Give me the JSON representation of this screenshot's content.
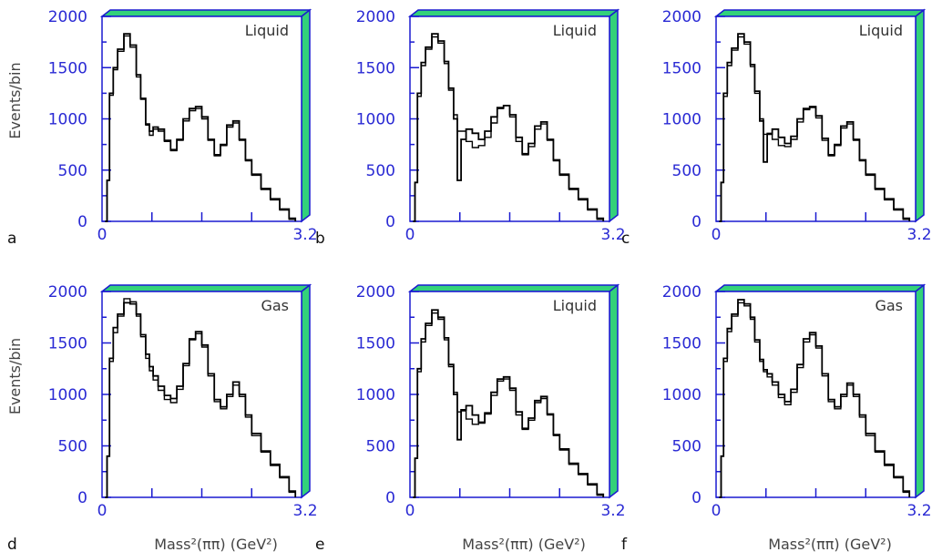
{
  "chart_data": [
    {
      "type": "line",
      "panel": "a",
      "label": "Liquid",
      "xlim": [
        0,
        3.2
      ],
      "ylim": [
        0,
        2000
      ],
      "x_ticks": [
        "0",
        "3.2"
      ],
      "y_ticks": [
        "0",
        "500",
        "1000",
        "1500",
        "2000"
      ],
      "ylabel": "Events/bin",
      "xlabel": "",
      "x": [
        0.05,
        0.08,
        0.12,
        0.18,
        0.25,
        0.35,
        0.45,
        0.55,
        0.62,
        0.7,
        0.76,
        0.82,
        0.9,
        1.0,
        1.1,
        1.2,
        1.3,
        1.4,
        1.5,
        1.6,
        1.7,
        1.8,
        1.9,
        2.0,
        2.1,
        2.2,
        2.3,
        2.4,
        2.55,
        2.7,
        2.85,
        3.0,
        3.1
      ],
      "series": [
        {
          "values": [
            0,
            400,
            1250,
            1500,
            1680,
            1830,
            1720,
            1430,
            1200,
            950,
            880,
            920,
            900,
            790,
            700,
            800,
            1000,
            1100,
            1120,
            1020,
            800,
            650,
            750,
            940,
            980,
            800,
            600,
            460,
            320,
            220,
            120,
            30,
            0
          ]
        },
        {
          "values": [
            0,
            400,
            1230,
            1480,
            1660,
            1810,
            1700,
            1410,
            1190,
            940,
            840,
            900,
            880,
            780,
            690,
            790,
            980,
            1080,
            1100,
            1000,
            790,
            640,
            740,
            920,
            960,
            790,
            590,
            450,
            310,
            210,
            110,
            20,
            0
          ]
        }
      ]
    },
    {
      "type": "line",
      "panel": "b",
      "label": "Liquid",
      "xlim": [
        0,
        3.2
      ],
      "ylim": [
        0,
        2000
      ],
      "x_ticks": [
        "0",
        "3.2"
      ],
      "y_ticks": [
        "0",
        "500",
        "1000",
        "1500",
        "2000"
      ],
      "ylabel": "",
      "xlabel": "",
      "x": [
        0.05,
        0.08,
        0.12,
        0.18,
        0.25,
        0.35,
        0.45,
        0.55,
        0.62,
        0.7,
        0.76,
        0.82,
        0.9,
        1.0,
        1.1,
        1.2,
        1.3,
        1.4,
        1.5,
        1.6,
        1.7,
        1.8,
        1.9,
        2.0,
        2.1,
        2.2,
        2.3,
        2.4,
        2.55,
        2.7,
        2.85,
        3.0,
        3.1
      ],
      "series": [
        {
          "values": [
            0,
            380,
            1250,
            1550,
            1700,
            1830,
            1760,
            1560,
            1300,
            1000,
            400,
            800,
            900,
            860,
            800,
            880,
            1020,
            1110,
            1130,
            1040,
            820,
            660,
            760,
            930,
            970,
            800,
            600,
            460,
            320,
            220,
            120,
            30,
            0
          ]
        },
        {
          "values": [
            0,
            380,
            1220,
            1520,
            1680,
            1800,
            1740,
            1540,
            1280,
            1040,
            880,
            880,
            780,
            720,
            740,
            820,
            960,
            1100,
            1130,
            1020,
            780,
            650,
            730,
            900,
            950,
            790,
            590,
            450,
            310,
            210,
            110,
            20,
            0
          ]
        }
      ]
    },
    {
      "type": "line",
      "panel": "c",
      "label": "Liquid",
      "xlim": [
        0,
        3.2
      ],
      "ylim": [
        0,
        2000
      ],
      "x_ticks": [
        "0",
        "3.2"
      ],
      "y_ticks": [
        "0",
        "500",
        "1000",
        "1500",
        "2000"
      ],
      "ylabel": "",
      "xlabel": "",
      "x": [
        0.05,
        0.08,
        0.12,
        0.18,
        0.25,
        0.35,
        0.45,
        0.55,
        0.62,
        0.7,
        0.76,
        0.82,
        0.9,
        1.0,
        1.1,
        1.2,
        1.3,
        1.4,
        1.5,
        1.6,
        1.7,
        1.8,
        1.9,
        2.0,
        2.1,
        2.2,
        2.3,
        2.4,
        2.55,
        2.7,
        2.85,
        3.0,
        3.1
      ],
      "series": [
        {
          "values": [
            0,
            380,
            1250,
            1550,
            1690,
            1830,
            1750,
            1530,
            1270,
            980,
            580,
            850,
            900,
            820,
            760,
            830,
            1000,
            1100,
            1120,
            1030,
            810,
            650,
            750,
            930,
            970,
            800,
            600,
            460,
            320,
            220,
            120,
            30,
            0
          ]
        },
        {
          "values": [
            0,
            380,
            1220,
            1520,
            1670,
            1800,
            1730,
            1510,
            1250,
            1000,
            850,
            860,
            800,
            740,
            730,
            800,
            970,
            1090,
            1110,
            1010,
            790,
            640,
            740,
            910,
            950,
            790,
            590,
            450,
            310,
            210,
            110,
            20,
            0
          ]
        }
      ]
    },
    {
      "type": "line",
      "panel": "d",
      "label": "Gas",
      "xlim": [
        0,
        3.2
      ],
      "ylim": [
        0,
        2000
      ],
      "x_ticks": [
        "0",
        "3.2"
      ],
      "y_ticks": [
        "0",
        "500",
        "1000",
        "1500",
        "2000"
      ],
      "ylabel": "Events/bin",
      "xlabel": "Mass²(ππ) (GeV²)",
      "x": [
        0.05,
        0.08,
        0.12,
        0.18,
        0.25,
        0.35,
        0.45,
        0.55,
        0.62,
        0.7,
        0.76,
        0.82,
        0.9,
        1.0,
        1.1,
        1.2,
        1.3,
        1.4,
        1.5,
        1.6,
        1.7,
        1.8,
        1.9,
        2.0,
        2.1,
        2.2,
        2.3,
        2.4,
        2.55,
        2.7,
        2.85,
        3.0,
        3.1
      ],
      "series": [
        {
          "values": [
            0,
            400,
            1350,
            1650,
            1780,
            1890,
            1880,
            1780,
            1580,
            1390,
            1270,
            1180,
            1080,
            990,
            960,
            1080,
            1300,
            1540,
            1610,
            1480,
            1200,
            950,
            880,
            1000,
            1120,
            1000,
            800,
            620,
            450,
            320,
            200,
            60,
            0
          ]
        },
        {
          "values": [
            0,
            400,
            1320,
            1600,
            1760,
            1930,
            1900,
            1760,
            1560,
            1350,
            1230,
            1140,
            1040,
            950,
            920,
            1050,
            1280,
            1530,
            1590,
            1460,
            1180,
            930,
            860,
            980,
            1090,
            980,
            780,
            600,
            440,
            310,
            190,
            50,
            0
          ]
        }
      ]
    },
    {
      "type": "line",
      "panel": "e",
      "label": "Liquid",
      "xlim": [
        0,
        3.2
      ],
      "ylim": [
        0,
        2000
      ],
      "x_ticks": [
        "0",
        "3.2"
      ],
      "y_ticks": [
        "0",
        "500",
        "1000",
        "1500",
        "2000"
      ],
      "ylabel": "",
      "xlabel": "Mass²(ππ) (GeV²)",
      "x": [
        0.05,
        0.08,
        0.12,
        0.18,
        0.25,
        0.35,
        0.45,
        0.55,
        0.62,
        0.7,
        0.76,
        0.82,
        0.9,
        1.0,
        1.1,
        1.2,
        1.3,
        1.4,
        1.5,
        1.6,
        1.7,
        1.8,
        1.9,
        2.0,
        2.1,
        2.2,
        2.3,
        2.4,
        2.55,
        2.7,
        2.85,
        3.0,
        3.1
      ],
      "series": [
        {
          "values": [
            0,
            380,
            1250,
            1540,
            1690,
            1820,
            1750,
            1550,
            1290,
            1000,
            560,
            850,
            890,
            800,
            730,
            820,
            1020,
            1150,
            1170,
            1060,
            830,
            670,
            770,
            940,
            980,
            810,
            610,
            470,
            330,
            230,
            130,
            30,
            0
          ]
        },
        {
          "values": [
            0,
            380,
            1220,
            1510,
            1670,
            1790,
            1730,
            1530,
            1270,
            1020,
            830,
            840,
            760,
            710,
            720,
            810,
            990,
            1130,
            1150,
            1040,
            800,
            660,
            750,
            920,
            960,
            800,
            600,
            460,
            320,
            220,
            120,
            20,
            0
          ]
        }
      ]
    },
    {
      "type": "line",
      "panel": "f",
      "label": "Gas",
      "xlim": [
        0,
        3.2
      ],
      "ylim": [
        0,
        2000
      ],
      "x_ticks": [
        "0",
        "3.2"
      ],
      "y_ticks": [
        "0",
        "500",
        "1000",
        "1500",
        "2000"
      ],
      "ylabel": "",
      "xlabel": "Mass²(ππ) (GeV²)",
      "x": [
        0.05,
        0.08,
        0.12,
        0.18,
        0.25,
        0.35,
        0.45,
        0.55,
        0.62,
        0.7,
        0.76,
        0.82,
        0.9,
        1.0,
        1.1,
        1.2,
        1.3,
        1.4,
        1.5,
        1.6,
        1.7,
        1.8,
        1.9,
        2.0,
        2.1,
        2.2,
        2.3,
        2.4,
        2.55,
        2.7,
        2.85,
        3.0,
        3.1
      ],
      "series": [
        {
          "values": [
            0,
            400,
            1350,
            1640,
            1780,
            1920,
            1880,
            1750,
            1530,
            1340,
            1240,
            1200,
            1120,
            1000,
            930,
            1050,
            1290,
            1540,
            1600,
            1470,
            1200,
            950,
            880,
            1000,
            1110,
            1000,
            800,
            620,
            450,
            320,
            200,
            60,
            0
          ]
        },
        {
          "values": [
            0,
            400,
            1320,
            1610,
            1760,
            1890,
            1860,
            1730,
            1510,
            1320,
            1220,
            1170,
            1090,
            970,
            900,
            1020,
            1260,
            1510,
            1580,
            1450,
            1180,
            930,
            860,
            980,
            1090,
            980,
            780,
            600,
            440,
            310,
            190,
            50,
            0
          ]
        }
      ]
    }
  ]
}
